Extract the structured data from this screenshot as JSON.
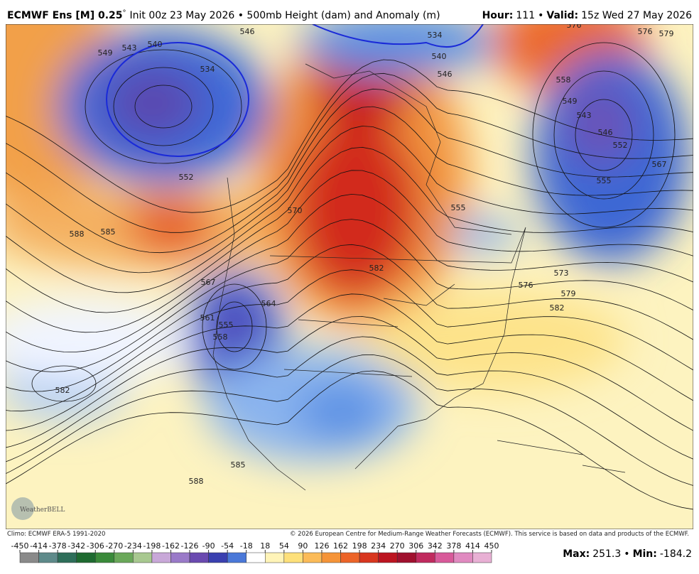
{
  "header": {
    "title": "ECMWF Ens [M] 0.25",
    "degree": "°",
    "subtitle": "Init 00z 23 May 2026 • 500mb Height (dam) and Anomaly (m)",
    "hour_label": "Hour:",
    "hour": "111",
    "separator": "•",
    "valid_label": "Valid:",
    "valid": "15z Wed 27 May 2026"
  },
  "map": {
    "contour_labels": [
      549,
      543,
      540,
      546,
      534,
      552,
      588,
      585,
      570,
      567,
      564,
      561,
      558,
      555,
      582,
      585,
      588,
      582,
      576,
      573,
      579,
      582,
      558,
      549,
      543,
      546,
      552,
      555,
      567,
      555,
      576,
      576,
      579,
      534,
      540,
      546
    ],
    "logo": "WeatherBELL"
  },
  "footer": {
    "climo": "Climo: ECMWF ERA-5 1991-2020",
    "copyright": "© 2026 European Centre for Medium-Range Weather Forecasts (ECMWF). This service is based on data and products of the ECMWF."
  },
  "colorbar": {
    "ticks": [
      -450,
      -414,
      -378,
      -342,
      -306,
      -270,
      -234,
      -198,
      -162,
      -126,
      -90,
      -54,
      -18,
      18,
      54,
      90,
      126,
      162,
      198,
      234,
      270,
      306,
      342,
      378,
      414,
      450
    ],
    "colors": [
      "#8a8a8a",
      "#5e8a8a",
      "#2e6e5a",
      "#1e6a30",
      "#3a8a3a",
      "#6aa85a",
      "#a8c890",
      "#c8a8d8",
      "#9a7ac8",
      "#6a4ab0",
      "#3a40b0",
      "#4a78d8",
      "#ffffff",
      "#fff4b8",
      "#fde07a",
      "#fbbb58",
      "#f59438",
      "#ec6428",
      "#d8361e",
      "#bc1420",
      "#a0102e",
      "#c02a5e",
      "#d85a9a",
      "#e08ac0",
      "#e8b0d4"
    ]
  },
  "stats": {
    "max_label": "Max:",
    "max": 251.3,
    "separator": "•",
    "min_label": "Min:",
    "min": -184.2
  }
}
